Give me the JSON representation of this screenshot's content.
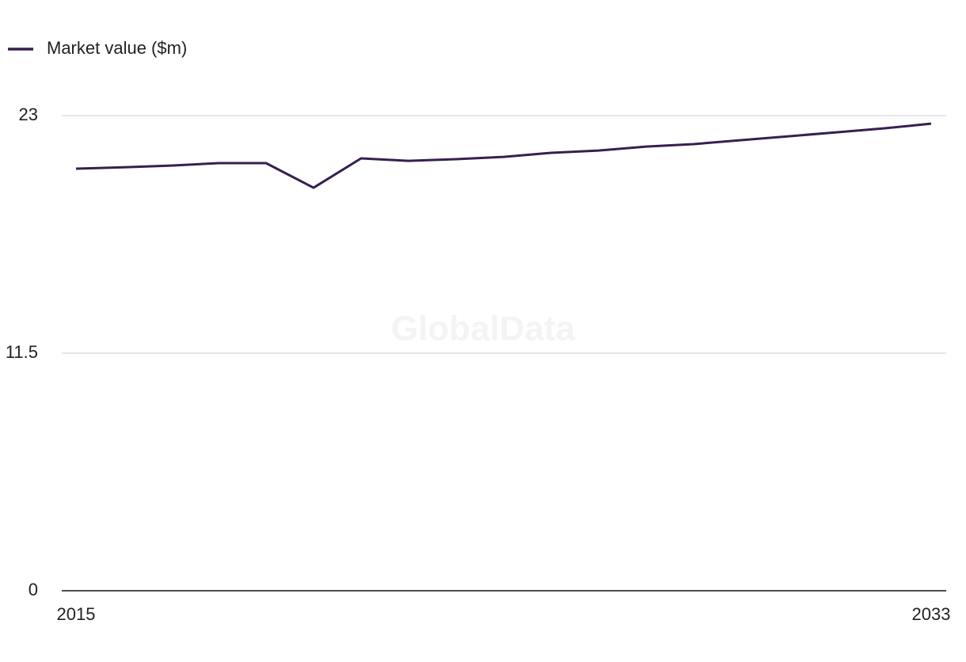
{
  "chart_data": {
    "type": "line",
    "legend": "top-left",
    "watermark": "GlobalData",
    "x": [
      2015,
      2016,
      2017,
      2018,
      2019,
      2020,
      2021,
      2022,
      2023,
      2024,
      2025,
      2026,
      2027,
      2028,
      2029,
      2030,
      2031,
      2032,
      2033
    ],
    "xlim": [
      2015,
      2033
    ],
    "xticks": [
      2015,
      2033
    ],
    "ylim": [
      0,
      23
    ],
    "yticks": [
      0,
      11.5,
      23
    ],
    "grid": true,
    "series": [
      {
        "name": "Market value ($m)",
        "color": "#36204f",
        "values": [
          20.43,
          20.5,
          20.58,
          20.7,
          20.7,
          19.51,
          20.93,
          20.81,
          20.89,
          21.0,
          21.2,
          21.31,
          21.5,
          21.62,
          21.81,
          22.0,
          22.19,
          22.38,
          22.61
        ]
      }
    ]
  }
}
